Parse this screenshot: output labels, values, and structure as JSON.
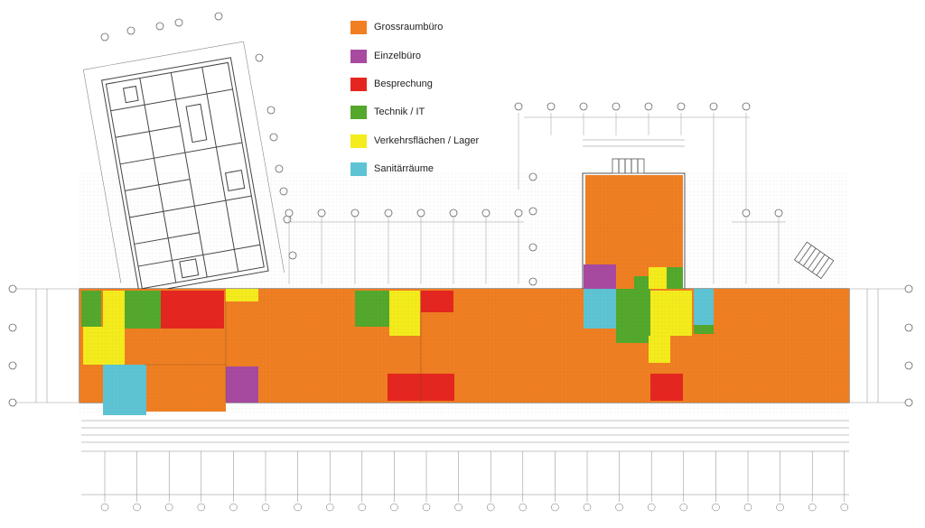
{
  "legend": {
    "items": [
      {
        "label": "Grossraumbüro",
        "color": "#f07f22"
      },
      {
        "label": "Einzelbüro",
        "color": "#a84aa0"
      },
      {
        "label": "Besprechung",
        "color": "#e52620"
      },
      {
        "label": "Technik / IT",
        "color": "#54a82c"
      },
      {
        "label": "Verkehrsflächen / Lager",
        "color": "#f4ec1c"
      },
      {
        "label": "Sanitärräume",
        "color": "#5ec4d4"
      }
    ]
  },
  "colors": {
    "line": "#555555",
    "grid_line": "#888888",
    "room_fill": "#f07f22"
  }
}
